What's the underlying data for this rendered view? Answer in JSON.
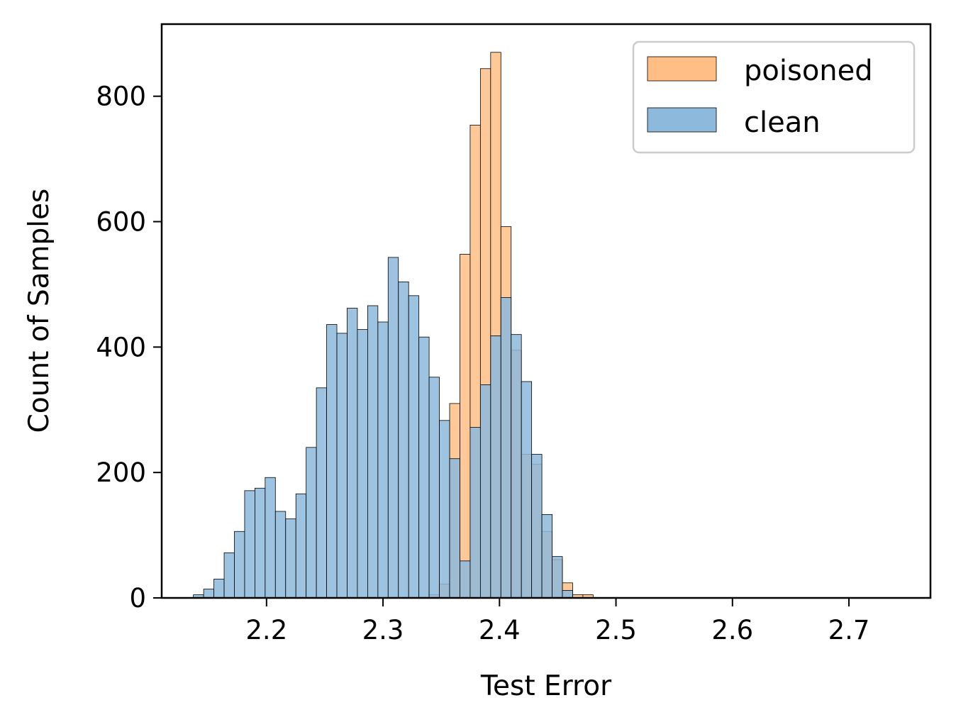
{
  "chart_data": {
    "type": "histogram",
    "title": "",
    "xlabel": "Test Error",
    "ylabel": "Count of Samples",
    "xlim": [
      2.11,
      2.77
    ],
    "ylim": [
      0,
      915
    ],
    "xticks": [
      2.2,
      2.3,
      2.4,
      2.5,
      2.6,
      2.7
    ],
    "xtick_labels": [
      "2.2",
      "2.3",
      "2.4",
      "2.5",
      "2.6",
      "2.7"
    ],
    "yticks": [
      0,
      200,
      400,
      600,
      800
    ],
    "ytick_labels": [
      "0",
      "200",
      "400",
      "600",
      "800"
    ],
    "bin_width": 0.0088,
    "grid": false,
    "legend": {
      "position": "top-right",
      "entries": [
        "poisoned",
        "clean"
      ]
    },
    "series": [
      {
        "name": "poisoned",
        "color": "#ffbe86",
        "bins": [
          {
            "x": 2.3396,
            "count": 5
          },
          {
            "x": 2.3484,
            "count": 22
          },
          {
            "x": 2.3572,
            "count": 310
          },
          {
            "x": 2.366,
            "count": 548
          },
          {
            "x": 2.3748,
            "count": 754
          },
          {
            "x": 2.3836,
            "count": 844
          },
          {
            "x": 2.3924,
            "count": 870
          },
          {
            "x": 2.4012,
            "count": 592
          },
          {
            "x": 2.41,
            "count": 395
          },
          {
            "x": 2.4188,
            "count": 229
          },
          {
            "x": 2.4276,
            "count": 213
          },
          {
            "x": 2.4364,
            "count": 106
          },
          {
            "x": 2.4452,
            "count": 61
          },
          {
            "x": 2.454,
            "count": 24
          },
          {
            "x": 2.4628,
            "count": 5
          },
          {
            "x": 2.4716,
            "count": 5
          }
        ]
      },
      {
        "name": "clean",
        "color": "#8cb9dc",
        "bins": [
          {
            "x": 2.1372,
            "count": 5
          },
          {
            "x": 2.146,
            "count": 14
          },
          {
            "x": 2.1548,
            "count": 30
          },
          {
            "x": 2.1636,
            "count": 72
          },
          {
            "x": 2.1724,
            "count": 106
          },
          {
            "x": 2.1812,
            "count": 171
          },
          {
            "x": 2.19,
            "count": 175
          },
          {
            "x": 2.1988,
            "count": 192
          },
          {
            "x": 2.2076,
            "count": 138
          },
          {
            "x": 2.2164,
            "count": 126
          },
          {
            "x": 2.2252,
            "count": 166
          },
          {
            "x": 2.234,
            "count": 240
          },
          {
            "x": 2.2428,
            "count": 335
          },
          {
            "x": 2.2516,
            "count": 436
          },
          {
            "x": 2.2604,
            "count": 422
          },
          {
            "x": 2.2692,
            "count": 462
          },
          {
            "x": 2.278,
            "count": 428
          },
          {
            "x": 2.2868,
            "count": 466
          },
          {
            "x": 2.2956,
            "count": 440
          },
          {
            "x": 2.3044,
            "count": 543
          },
          {
            "x": 2.3132,
            "count": 504
          },
          {
            "x": 2.322,
            "count": 482
          },
          {
            "x": 2.3308,
            "count": 416
          },
          {
            "x": 2.3396,
            "count": 352
          },
          {
            "x": 2.3484,
            "count": 283
          },
          {
            "x": 2.3572,
            "count": 222
          },
          {
            "x": 2.366,
            "count": 59
          },
          {
            "x": 2.3748,
            "count": 272
          },
          {
            "x": 2.3836,
            "count": 340
          },
          {
            "x": 2.3924,
            "count": 418
          },
          {
            "x": 2.4012,
            "count": 479
          },
          {
            "x": 2.41,
            "count": 420
          },
          {
            "x": 2.4188,
            "count": 345
          },
          {
            "x": 2.4276,
            "count": 229
          },
          {
            "x": 2.4364,
            "count": 133
          },
          {
            "x": 2.4452,
            "count": 66
          },
          {
            "x": 2.454,
            "count": 12
          }
        ]
      }
    ]
  }
}
